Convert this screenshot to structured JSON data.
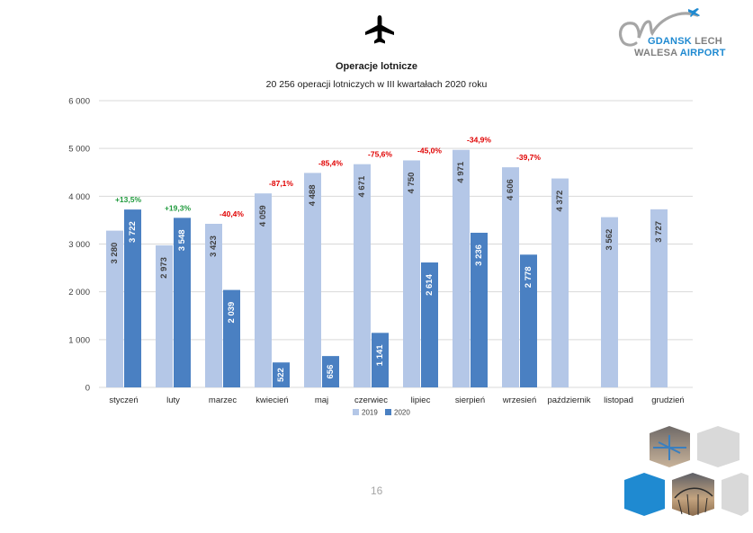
{
  "slide": {
    "page_number": "16",
    "logo": {
      "line1a": "GDANSK",
      "line1b": "LECH",
      "line2a": "WALESA",
      "line2b": "AIRPORT"
    }
  },
  "colors": {
    "series_2019": "#b4c7e7",
    "series_2020": "#4a80c2",
    "positive": "#1f9a3c",
    "negative": "#e00000",
    "grid": "#d9d9d9"
  },
  "chart_data": {
    "type": "bar",
    "title": "Operacje lotnicze",
    "subtitle": "20 256 operacji lotniczych w III kwartałach 2020 roku",
    "categories": [
      "styczeń",
      "luty",
      "marzec",
      "kwiecień",
      "maj",
      "czerwiec",
      "lipiec",
      "sierpień",
      "wrzesień",
      "październik",
      "listopad",
      "grudzień"
    ],
    "series": [
      {
        "name": "2019",
        "values": [
          3280,
          2973,
          3423,
          4059,
          4488,
          4671,
          4750,
          4971,
          4606,
          4372,
          3562,
          3727
        ],
        "labels": [
          "3 280",
          "2 973",
          "3 423",
          "4 059",
          "4 488",
          "4 671",
          "4 750",
          "4 971",
          "4 606",
          "4 372",
          "3 562",
          "3 727"
        ]
      },
      {
        "name": "2020",
        "values": [
          3722,
          3548,
          2039,
          522,
          656,
          1141,
          2614,
          3236,
          2778,
          null,
          null,
          null
        ],
        "labels": [
          "3 722",
          "3 548",
          "2 039",
          "522",
          "656",
          "1 141",
          "2 614",
          "3 236",
          "2 778",
          "",
          "",
          ""
        ]
      }
    ],
    "change_labels": [
      "+13,5%",
      "+19,3%",
      "-40,4%",
      "-87,1%",
      "-85,4%",
      "-75,6%",
      "-45,0%",
      "-34,9%",
      "-39,7%",
      "",
      "",
      ""
    ],
    "ylim": [
      0,
      6000
    ],
    "yticks": [
      0,
      1000,
      2000,
      3000,
      4000,
      5000,
      6000
    ],
    "ytick_labels": [
      "0",
      "1 000",
      "2 000",
      "3 000",
      "4 000",
      "5 000",
      "6 000"
    ],
    "grid": true,
    "legend": "bottom"
  }
}
